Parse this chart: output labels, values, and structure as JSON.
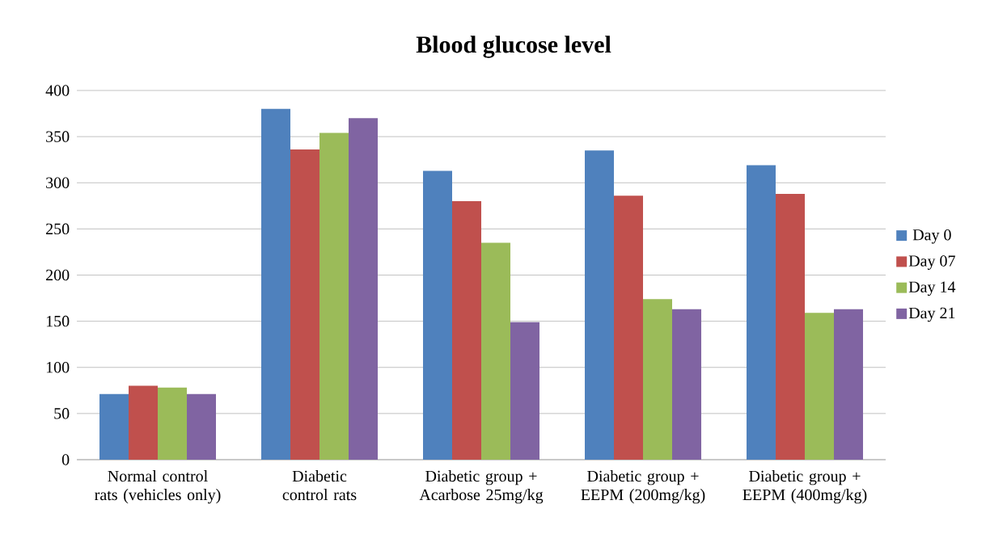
{
  "chart_data": {
    "type": "bar",
    "title": "Blood glucose level",
    "categories": [
      "Normal control rats (vehicles only)",
      "Diabetic control rats",
      "Diabetic group + Acarbose 25mg/kg",
      "Diabetic group + EEPM (200mg/kg)",
      "Diabetic group + EEPM (400mg/kg)"
    ],
    "series": [
      {
        "name": "Day 0",
        "color": "#4f81bd",
        "values": [
          71,
          380,
          313,
          335,
          319
        ]
      },
      {
        "name": "Day 07",
        "color": "#c0504d",
        "values": [
          80,
          336,
          280,
          286,
          288
        ]
      },
      {
        "name": "Day 14",
        "color": "#9bbb59",
        "values": [
          78,
          354,
          235,
          174,
          159
        ]
      },
      {
        "name": "Day 21",
        "color": "#8064a2",
        "values": [
          71,
          370,
          149,
          163,
          163
        ]
      }
    ],
    "ylim": [
      0,
      400
    ],
    "yticks": [
      0,
      50,
      100,
      150,
      200,
      250,
      300,
      350,
      400
    ],
    "grid": "y",
    "legend": "right"
  }
}
